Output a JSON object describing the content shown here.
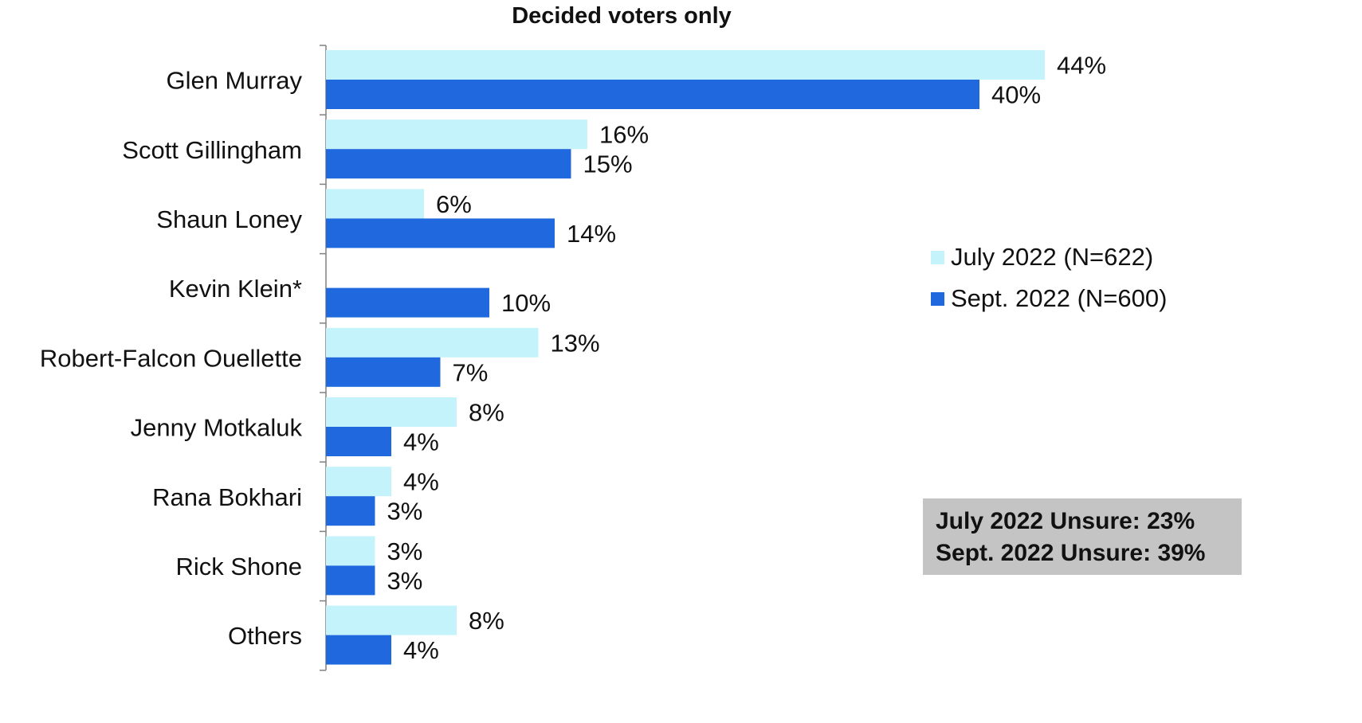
{
  "chart_data": {
    "type": "bar",
    "orientation": "horizontal",
    "title": "Decided voters only",
    "categories": [
      "Glen Murray",
      "Scott Gillingham",
      "Shaun Loney",
      "Kevin Klein*",
      "Robert-Falcon Ouellette",
      "Jenny Motkaluk",
      "Rana Bokhari",
      "Rick Shone",
      "Others"
    ],
    "series": [
      {
        "name": "July 2022 (N=622)",
        "color": "#c5f3fb",
        "values": [
          44,
          16,
          6,
          null,
          13,
          8,
          4,
          3,
          8
        ],
        "labels": [
          "44%",
          "16%",
          "6%",
          "",
          "13%",
          "8%",
          "4%",
          "3%",
          "8%"
        ]
      },
      {
        "name": "Sept. 2022 (N=600)",
        "color": "#1f68de",
        "values": [
          40,
          15,
          14,
          10,
          7,
          4,
          3,
          3,
          4
        ],
        "labels": [
          "40%",
          "15%",
          "14%",
          "10%",
          "7%",
          "4%",
          "3%",
          "3%",
          "4%"
        ]
      }
    ],
    "xlim": [
      0,
      44
    ],
    "legend_position": "right",
    "grid": false,
    "annotation": {
      "line1": "July 2022 Unsure: 23%",
      "line2": "Sept. 2022 Unsure: 39%",
      "background": "#c4c4c4"
    }
  }
}
